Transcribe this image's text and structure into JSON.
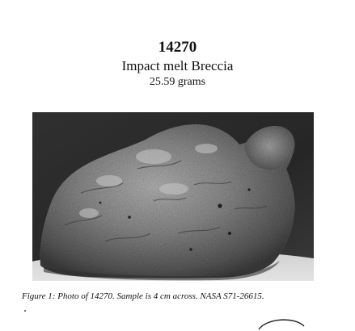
{
  "document": {
    "sample_id": "14270",
    "sample_type": "Impact melt Breccia",
    "mass": "25.59 grams"
  },
  "figure": {
    "caption": "Figure 1:  Photo of 14270.  Sample is 4 cm across.  NASA S71-26615."
  },
  "colors": {
    "photo_background": "#2a2a2a",
    "rock_mid": "#8a8a8a",
    "rock_light": "#b5b5b5",
    "rock_dark": "#4a4a4a",
    "base_light": "#e4e4e4"
  }
}
